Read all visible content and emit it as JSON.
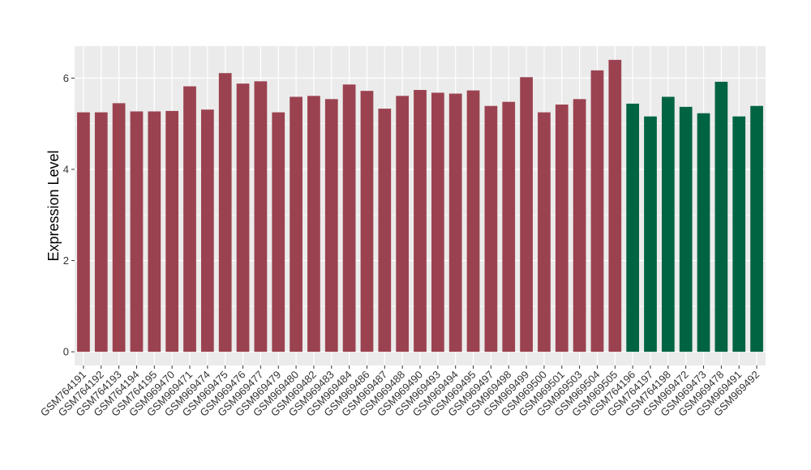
{
  "chart_data": {
    "type": "bar",
    "title": "",
    "xlabel": "",
    "ylabel": "Expression Level",
    "ylim": [
      -0.3,
      6.7
    ],
    "yticks": [
      0,
      2,
      4,
      6
    ],
    "grid": true,
    "legend": "none",
    "colors": {
      "group1": "#9b4250",
      "group2": "#006443",
      "panel": "#ebebeb",
      "grid": "#ffffff"
    },
    "categories": [
      "GSM764191",
      "GSM764192",
      "GSM764193",
      "GSM764194",
      "GSM764195",
      "GSM969470",
      "GSM969471",
      "GSM969474",
      "GSM969475",
      "GSM969476",
      "GSM969477",
      "GSM969479",
      "GSM969480",
      "GSM969482",
      "GSM969483",
      "GSM969484",
      "GSM969486",
      "GSM969487",
      "GSM969488",
      "GSM969490",
      "GSM969493",
      "GSM969494",
      "GSM969495",
      "GSM969497",
      "GSM969498",
      "GSM969499",
      "GSM969500",
      "GSM969501",
      "GSM969503",
      "GSM969504",
      "GSM969505",
      "GSM764196",
      "GSM764197",
      "GSM764198",
      "GSM969472",
      "GSM969473",
      "GSM969478",
      "GSM969491",
      "GSM969492"
    ],
    "values": [
      5.25,
      5.25,
      5.45,
      5.27,
      5.27,
      5.28,
      5.82,
      5.31,
      6.11,
      5.88,
      5.93,
      5.25,
      5.59,
      5.61,
      5.54,
      5.86,
      5.72,
      5.33,
      5.61,
      5.74,
      5.68,
      5.66,
      5.73,
      5.39,
      5.48,
      6.02,
      5.25,
      5.42,
      5.54,
      6.17,
      6.4,
      5.44,
      5.16,
      5.59,
      5.37,
      5.23,
      5.92,
      5.16,
      5.39
    ],
    "groups": [
      1,
      1,
      1,
      1,
      1,
      1,
      1,
      1,
      1,
      1,
      1,
      1,
      1,
      1,
      1,
      1,
      1,
      1,
      1,
      1,
      1,
      1,
      1,
      1,
      1,
      1,
      1,
      1,
      1,
      1,
      1,
      2,
      2,
      2,
      2,
      2,
      2,
      2,
      2
    ]
  }
}
